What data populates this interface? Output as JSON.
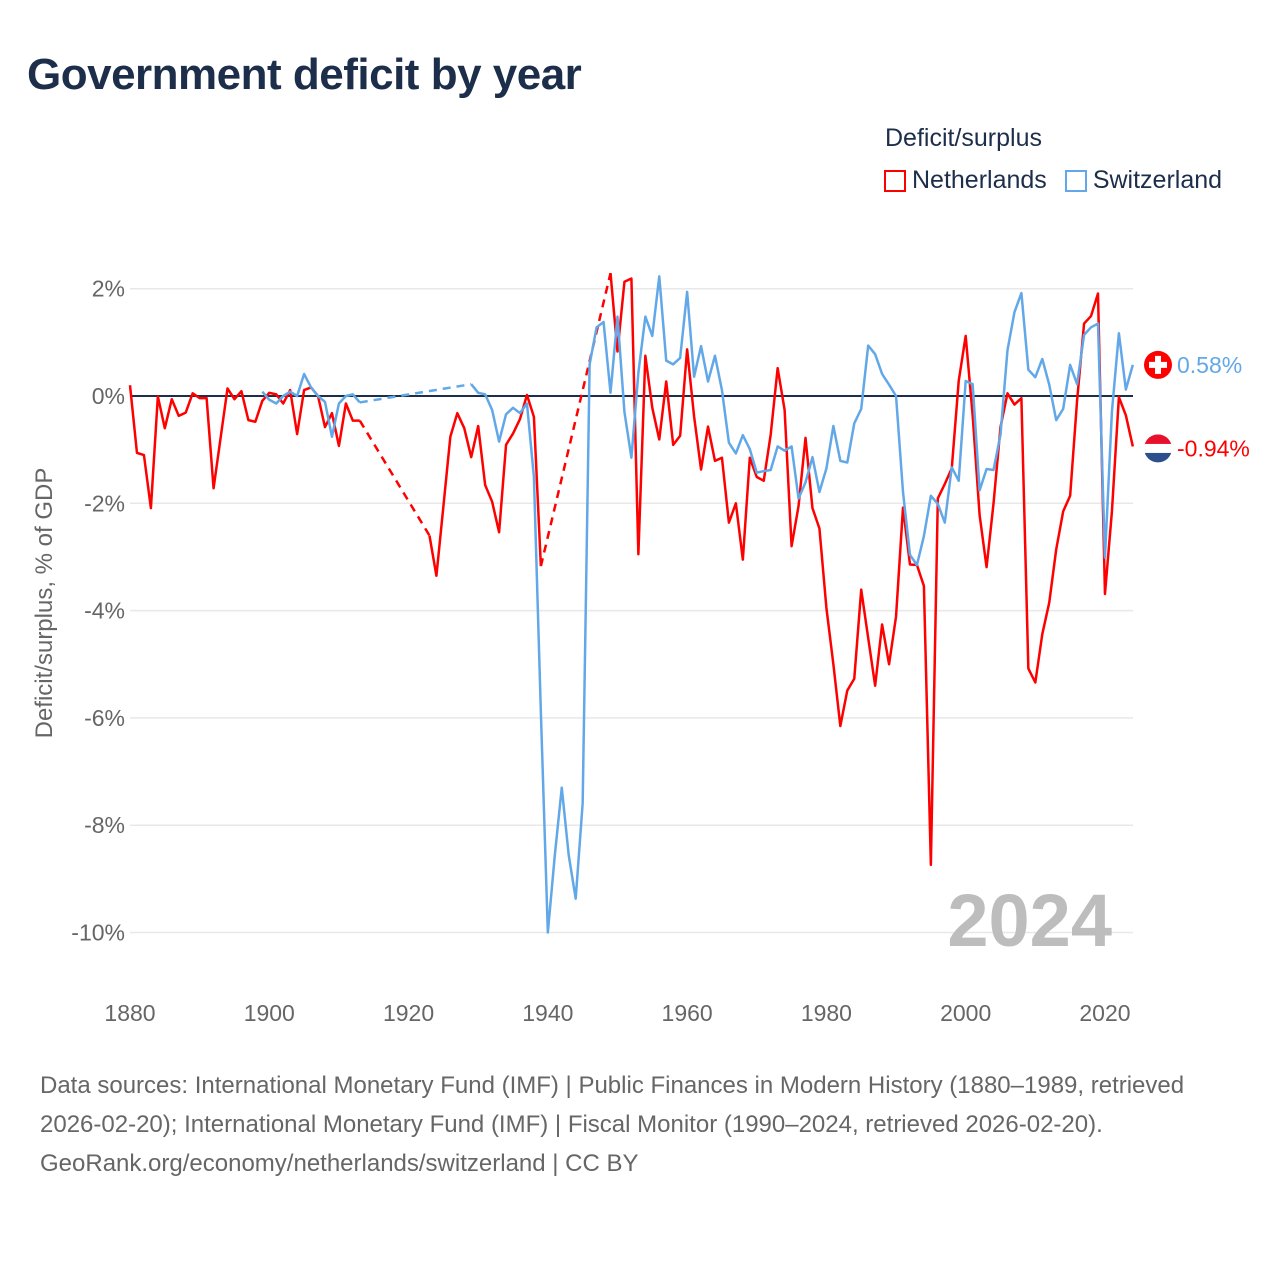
{
  "title": "Government deficit by year",
  "legend": {
    "title": "Deficit/surplus",
    "items": [
      {
        "label": "Netherlands",
        "color": "#ff0000"
      },
      {
        "label": "Switzerland",
        "color": "#62a8e8"
      }
    ]
  },
  "chart_data": {
    "type": "line",
    "title": "Government deficit by year",
    "xlabel": "",
    "ylabel": "Deficit/surplus, % of GDP",
    "xlim": [
      1880,
      2024
    ],
    "ylim": [
      -10,
      2
    ],
    "x_ticks": [
      1880,
      1900,
      1920,
      1940,
      1960,
      1980,
      2000,
      2020
    ],
    "y_ticks": [
      2,
      0,
      -2,
      -4,
      -6,
      -8,
      -10
    ],
    "y_tick_labels": [
      "2%",
      "0%",
      "-2%",
      "-4%",
      "-6%",
      "-8%",
      "-10%"
    ],
    "grid": true,
    "legend_position": "top-right",
    "year_label": "2024",
    "series": [
      {
        "name": "Netherlands",
        "color": "#ff0000",
        "end_label": "-0.94%",
        "points": [
          [
            1880,
            0.2
          ],
          [
            1881,
            -1.06
          ],
          [
            1882,
            -1.1
          ],
          [
            1883,
            -2.09
          ],
          [
            1884,
            -0.01
          ],
          [
            1885,
            -0.6
          ],
          [
            1886,
            -0.06
          ],
          [
            1887,
            -0.37
          ],
          [
            1888,
            -0.31
          ],
          [
            1889,
            0.05
          ],
          [
            1890,
            -0.04
          ],
          [
            1891,
            -0.04
          ],
          [
            1892,
            -1.72
          ],
          [
            1893,
            -0.79
          ],
          [
            1894,
            0.14
          ],
          [
            1895,
            -0.06
          ],
          [
            1896,
            0.09
          ],
          [
            1897,
            -0.45
          ],
          [
            1898,
            -0.48
          ],
          [
            1899,
            -0.09
          ],
          [
            1900,
            0.06
          ],
          [
            1901,
            0.03
          ],
          [
            1902,
            -0.14
          ],
          [
            1903,
            0.11
          ],
          [
            1904,
            -0.71
          ],
          [
            1905,
            0.11
          ],
          [
            1906,
            0.16
          ],
          [
            1907,
            0
          ],
          [
            1908,
            -0.58
          ],
          [
            1909,
            -0.32
          ],
          [
            1910,
            -0.93
          ],
          [
            1911,
            -0.14
          ],
          [
            1912,
            -0.46
          ],
          [
            1913,
            -0.46
          ],
          [
            1923,
            -2.6
          ],
          [
            1924,
            -3.35
          ],
          [
            1925,
            -2.06
          ],
          [
            1926,
            -0.76
          ],
          [
            1927,
            -0.32
          ],
          [
            1928,
            -0.6
          ],
          [
            1929,
            -1.14
          ],
          [
            1930,
            -0.56
          ],
          [
            1931,
            -1.66
          ],
          [
            1932,
            -1.97
          ],
          [
            1933,
            -2.54
          ],
          [
            1934,
            -0.91
          ],
          [
            1935,
            -0.7
          ],
          [
            1936,
            -0.43
          ],
          [
            1937,
            0.02
          ],
          [
            1938,
            -0.39
          ],
          [
            1939,
            -3.17
          ],
          [
            1949,
            2.29
          ],
          [
            1950,
            0.83
          ],
          [
            1951,
            2.13
          ],
          [
            1952,
            2.19
          ],
          [
            1953,
            -2.95
          ],
          [
            1954,
            0.75
          ],
          [
            1955,
            -0.22
          ],
          [
            1956,
            -0.81
          ],
          [
            1957,
            0.27
          ],
          [
            1958,
            -0.91
          ],
          [
            1959,
            -0.74
          ],
          [
            1960,
            0.87
          ],
          [
            1961,
            -0.38
          ],
          [
            1962,
            -1.37
          ],
          [
            1963,
            -0.57
          ],
          [
            1964,
            -1.21
          ],
          [
            1965,
            -1.15
          ],
          [
            1966,
            -2.36
          ],
          [
            1967,
            -2.0
          ],
          [
            1968,
            -3.05
          ],
          [
            1969,
            -1.15
          ],
          [
            1970,
            -1.51
          ],
          [
            1971,
            -1.58
          ],
          [
            1972,
            -0.72
          ],
          [
            1973,
            0.52
          ],
          [
            1974,
            -0.26
          ],
          [
            1975,
            -2.8
          ],
          [
            1976,
            -2.05
          ],
          [
            1977,
            -0.78
          ],
          [
            1978,
            -2.09
          ],
          [
            1979,
            -2.47
          ],
          [
            1980,
            -3.95
          ],
          [
            1981,
            -5.0
          ],
          [
            1982,
            -6.15
          ],
          [
            1983,
            -5.49
          ],
          [
            1984,
            -5.27
          ],
          [
            1985,
            -3.61
          ],
          [
            1986,
            -4.51
          ],
          [
            1987,
            -5.4
          ],
          [
            1988,
            -4.26
          ],
          [
            1989,
            -5.0
          ],
          [
            1990,
            -4.11
          ],
          [
            1991,
            -2.08
          ],
          [
            1992,
            -3.14
          ],
          [
            1993,
            -3.15
          ],
          [
            1994,
            -3.54
          ],
          [
            1995,
            -8.74
          ],
          [
            1996,
            -1.91
          ],
          [
            1997,
            -1.64
          ],
          [
            1998,
            -1.35
          ],
          [
            1999,
            0.28
          ],
          [
            2000,
            1.12
          ],
          [
            2001,
            -0.36
          ],
          [
            2002,
            -2.22
          ],
          [
            2003,
            -3.19
          ],
          [
            2004,
            -2.0
          ],
          [
            2005,
            -0.58
          ],
          [
            2006,
            0.05
          ],
          [
            2007,
            -0.16
          ],
          [
            2008,
            -0.04
          ],
          [
            2009,
            -5.08
          ],
          [
            2010,
            -5.34
          ],
          [
            2011,
            -4.44
          ],
          [
            2012,
            -3.85
          ],
          [
            2013,
            -2.86
          ],
          [
            2014,
            -2.15
          ],
          [
            2015,
            -1.86
          ],
          [
            2016,
            -0.08
          ],
          [
            2017,
            1.35
          ],
          [
            2018,
            1.49
          ],
          [
            2019,
            1.91
          ],
          [
            2020,
            -3.69
          ],
          [
            2021,
            -2.15
          ],
          [
            2022,
            -0.02
          ],
          [
            2023,
            -0.36
          ],
          [
            2024,
            -0.94
          ]
        ]
      },
      {
        "name": "Switzerland",
        "color": "#62a8e8",
        "end_label": "0.58%",
        "points": [
          [
            1899,
            0.08
          ],
          [
            1900,
            -0.07
          ],
          [
            1901,
            -0.14
          ],
          [
            1902,
            0
          ],
          [
            1903,
            0.08
          ],
          [
            1904,
            0
          ],
          [
            1905,
            0.41
          ],
          [
            1906,
            0.16
          ],
          [
            1907,
            0
          ],
          [
            1908,
            -0.11
          ],
          [
            1909,
            -0.76
          ],
          [
            1910,
            -0.14
          ],
          [
            1911,
            0
          ],
          [
            1912,
            0.03
          ],
          [
            1913,
            -0.12
          ],
          [
            1929,
            0.22
          ],
          [
            1930,
            0.06
          ],
          [
            1931,
            0.03
          ],
          [
            1932,
            -0.26
          ],
          [
            1933,
            -0.85
          ],
          [
            1934,
            -0.34
          ],
          [
            1935,
            -0.22
          ],
          [
            1936,
            -0.32
          ],
          [
            1937,
            -0.14
          ],
          [
            1938,
            -1.51
          ],
          [
            1939,
            -5.9
          ],
          [
            1940,
            -10.0
          ],
          [
            1941,
            -8.56
          ],
          [
            1942,
            -7.3
          ],
          [
            1943,
            -8.56
          ],
          [
            1944,
            -9.37
          ],
          [
            1945,
            -7.59
          ],
          [
            1946,
            0.59
          ],
          [
            1947,
            1.28
          ],
          [
            1948,
            1.38
          ],
          [
            1949,
            0.06
          ],
          [
            1950,
            1.48
          ],
          [
            1951,
            -0.3
          ],
          [
            1952,
            -1.15
          ],
          [
            1953,
            0.43
          ],
          [
            1954,
            1.48
          ],
          [
            1955,
            1.12
          ],
          [
            1956,
            2.23
          ],
          [
            1957,
            0.66
          ],
          [
            1958,
            0.59
          ],
          [
            1959,
            0.71
          ],
          [
            1960,
            1.94
          ],
          [
            1961,
            0.36
          ],
          [
            1962,
            0.93
          ],
          [
            1963,
            0.27
          ],
          [
            1964,
            0.75
          ],
          [
            1965,
            0.11
          ],
          [
            1966,
            -0.87
          ],
          [
            1967,
            -1.07
          ],
          [
            1968,
            -0.73
          ],
          [
            1969,
            -0.99
          ],
          [
            1970,
            -1.43
          ],
          [
            1971,
            -1.4
          ],
          [
            1972,
            -1.38
          ],
          [
            1973,
            -0.94
          ],
          [
            1974,
            -1.02
          ],
          [
            1975,
            -0.94
          ],
          [
            1976,
            -1.91
          ],
          [
            1977,
            -1.61
          ],
          [
            1978,
            -1.14
          ],
          [
            1979,
            -1.79
          ],
          [
            1980,
            -1.35
          ],
          [
            1981,
            -0.56
          ],
          [
            1982,
            -1.21
          ],
          [
            1983,
            -1.24
          ],
          [
            1984,
            -0.51
          ],
          [
            1985,
            -0.24
          ],
          [
            1986,
            0.94
          ],
          [
            1987,
            0.78
          ],
          [
            1988,
            0.41
          ],
          [
            1989,
            0.21
          ],
          [
            1990,
            0
          ],
          [
            1991,
            -1.79
          ],
          [
            1992,
            -2.96
          ],
          [
            1993,
            -3.15
          ],
          [
            1994,
            -2.61
          ],
          [
            1995,
            -1.86
          ],
          [
            1996,
            -2.01
          ],
          [
            1997,
            -2.36
          ],
          [
            1998,
            -1.33
          ],
          [
            1999,
            -1.58
          ],
          [
            2000,
            0.28
          ],
          [
            2001,
            0.22
          ],
          [
            2002,
            -1.76
          ],
          [
            2003,
            -1.36
          ],
          [
            2004,
            -1.38
          ],
          [
            2005,
            -0.72
          ],
          [
            2006,
            0.85
          ],
          [
            2007,
            1.56
          ],
          [
            2008,
            1.92
          ],
          [
            2009,
            0.49
          ],
          [
            2010,
            0.35
          ],
          [
            2011,
            0.69
          ],
          [
            2012,
            0.21
          ],
          [
            2013,
            -0.45
          ],
          [
            2014,
            -0.24
          ],
          [
            2015,
            0.58
          ],
          [
            2016,
            0.22
          ],
          [
            2017,
            1.14
          ],
          [
            2018,
            1.28
          ],
          [
            2019,
            1.35
          ],
          [
            2020,
            -3.01
          ],
          [
            2021,
            -0.29
          ],
          [
            2022,
            1.17
          ],
          [
            2023,
            0.12
          ],
          [
            2024,
            0.58
          ]
        ]
      }
    ]
  },
  "footer": {
    "sources": "Data sources: International Monetary Fund (IMF) | Public Finances in Modern History (1880–1989, retrieved 2026-02-20); International Monetary Fund (IMF) | Fiscal Monitor (1990–2024, retrieved 2026-02-20).",
    "credit": "GeoRank.org/economy/netherlands/switzerland | CC BY"
  }
}
